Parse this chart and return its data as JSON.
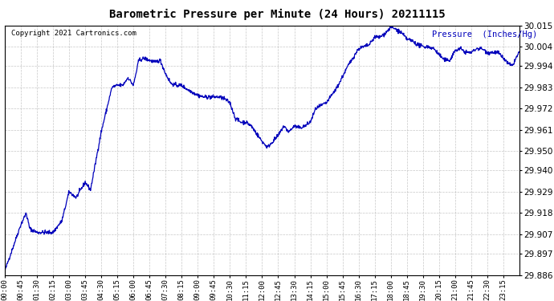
{
  "title": "Barometric Pressure per Minute (24 Hours) 20211115",
  "ylabel": "Pressure  (Inches/Hg)",
  "copyright": "Copyright 2021 Cartronics.com",
  "line_color": "#0000bb",
  "background_color": "#ffffff",
  "grid_color": "#b0b0b0",
  "ylabel_color": "#0000bb",
  "title_color": "#000000",
  "ylim": [
    29.886,
    30.015
  ],
  "yticks": [
    29.886,
    29.897,
    29.907,
    29.918,
    29.929,
    29.94,
    29.95,
    29.961,
    29.972,
    29.983,
    29.994,
    30.004,
    30.015
  ],
  "xtick_labels": [
    "00:00",
    "00:45",
    "01:30",
    "02:15",
    "03:00",
    "03:45",
    "04:30",
    "05:15",
    "06:00",
    "06:45",
    "07:30",
    "08:15",
    "09:00",
    "09:45",
    "10:30",
    "11:15",
    "12:00",
    "12:45",
    "13:30",
    "14:15",
    "15:00",
    "15:45",
    "16:30",
    "17:15",
    "18:00",
    "18:45",
    "19:30",
    "20:15",
    "21:00",
    "21:45",
    "22:30",
    "23:15"
  ],
  "key_points": [
    [
      0,
      29.888
    ],
    [
      45,
      29.912
    ],
    [
      60,
      29.918
    ],
    [
      70,
      29.91
    ],
    [
      90,
      29.908
    ],
    [
      135,
      29.908
    ],
    [
      160,
      29.914
    ],
    [
      180,
      29.929
    ],
    [
      200,
      29.926
    ],
    [
      225,
      29.934
    ],
    [
      240,
      29.93
    ],
    [
      270,
      29.96
    ],
    [
      300,
      29.983
    ],
    [
      315,
      29.984
    ],
    [
      330,
      29.984
    ],
    [
      345,
      29.988
    ],
    [
      360,
      29.984
    ],
    [
      375,
      29.997
    ],
    [
      390,
      29.998
    ],
    [
      405,
      29.997
    ],
    [
      420,
      29.996
    ],
    [
      435,
      29.997
    ],
    [
      450,
      29.99
    ],
    [
      465,
      29.985
    ],
    [
      480,
      29.984
    ],
    [
      495,
      29.984
    ],
    [
      510,
      29.982
    ],
    [
      540,
      29.979
    ],
    [
      555,
      29.978
    ],
    [
      570,
      29.978
    ],
    [
      585,
      29.978
    ],
    [
      600,
      29.978
    ],
    [
      615,
      29.977
    ],
    [
      630,
      29.975
    ],
    [
      645,
      29.967
    ],
    [
      660,
      29.965
    ],
    [
      675,
      29.965
    ],
    [
      690,
      29.963
    ],
    [
      720,
      29.955
    ],
    [
      735,
      29.952
    ],
    [
      750,
      29.955
    ],
    [
      765,
      29.958
    ],
    [
      780,
      29.963
    ],
    [
      795,
      29.96
    ],
    [
      810,
      29.963
    ],
    [
      825,
      29.962
    ],
    [
      840,
      29.963
    ],
    [
      855,
      29.965
    ],
    [
      870,
      29.972
    ],
    [
      900,
      29.975
    ],
    [
      930,
      29.983
    ],
    [
      960,
      29.994
    ],
    [
      990,
      30.003
    ],
    [
      1005,
      30.004
    ],
    [
      1020,
      30.005
    ],
    [
      1035,
      30.009
    ],
    [
      1050,
      30.009
    ],
    [
      1065,
      30.011
    ],
    [
      1080,
      30.014
    ],
    [
      1095,
      30.013
    ],
    [
      1110,
      30.011
    ],
    [
      1125,
      30.008
    ],
    [
      1140,
      30.007
    ],
    [
      1155,
      30.005
    ],
    [
      1170,
      30.004
    ],
    [
      1185,
      30.004
    ],
    [
      1200,
      30.003
    ],
    [
      1215,
      30.0
    ],
    [
      1230,
      29.997
    ],
    [
      1245,
      29.997
    ],
    [
      1260,
      30.002
    ],
    [
      1275,
      30.003
    ],
    [
      1290,
      30.001
    ],
    [
      1305,
      30.001
    ],
    [
      1320,
      30.003
    ],
    [
      1335,
      30.003
    ],
    [
      1350,
      30.001
    ],
    [
      1365,
      30.001
    ],
    [
      1380,
      30.001
    ],
    [
      1395,
      29.998
    ],
    [
      1410,
      29.995
    ],
    [
      1420,
      29.994
    ],
    [
      1430,
      29.998
    ],
    [
      1439,
      30.001
    ]
  ]
}
